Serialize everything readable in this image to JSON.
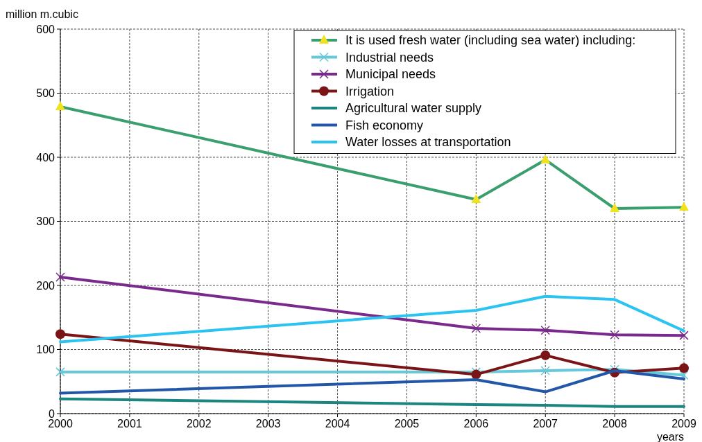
{
  "chart_data": {
    "type": "line",
    "xlabel": "years",
    "ylabel": "million m.cubic",
    "x": [
      2000,
      2006,
      2007,
      2008,
      2009
    ],
    "xlim": [
      2000,
      2009
    ],
    "xticks": [
      2000,
      2001,
      2002,
      2003,
      2004,
      2005,
      2006,
      2007,
      2008,
      2009
    ],
    "ylim": [
      0,
      600
    ],
    "yticks": [
      0,
      100,
      200,
      300,
      400,
      500,
      600
    ],
    "grid": true,
    "legend": "top right",
    "series": [
      {
        "name": "It is used fresh water (including sea water) including:",
        "color": "#3a9e6e",
        "marker": "triangle",
        "values": [
          479,
          334,
          396,
          320,
          322
        ]
      },
      {
        "name": "Industrial needs",
        "color": "#66c8d8",
        "marker": "cross",
        "values": [
          65,
          65,
          67,
          69,
          60
        ]
      },
      {
        "name": "Municipal needs",
        "color": "#7a2a8c",
        "marker": "cross",
        "values": [
          213,
          133,
          130,
          123,
          122
        ]
      },
      {
        "name": "Irrigation",
        "color": "#7b1416",
        "marker": "circle",
        "values": [
          124,
          61,
          91,
          64,
          71
        ]
      },
      {
        "name": "Agricultural water supply",
        "color": "#1b8580",
        "marker": "none",
        "values": [
          23,
          14,
          13,
          11,
          11
        ]
      },
      {
        "name": "Fish economy",
        "color": "#2256a8",
        "marker": "none",
        "values": [
          32,
          53,
          34,
          67,
          54
        ]
      },
      {
        "name": "Water losses at transportation",
        "color": "#2bc4f2",
        "marker": "none",
        "values": [
          112,
          161,
          183,
          178,
          129
        ]
      }
    ]
  }
}
